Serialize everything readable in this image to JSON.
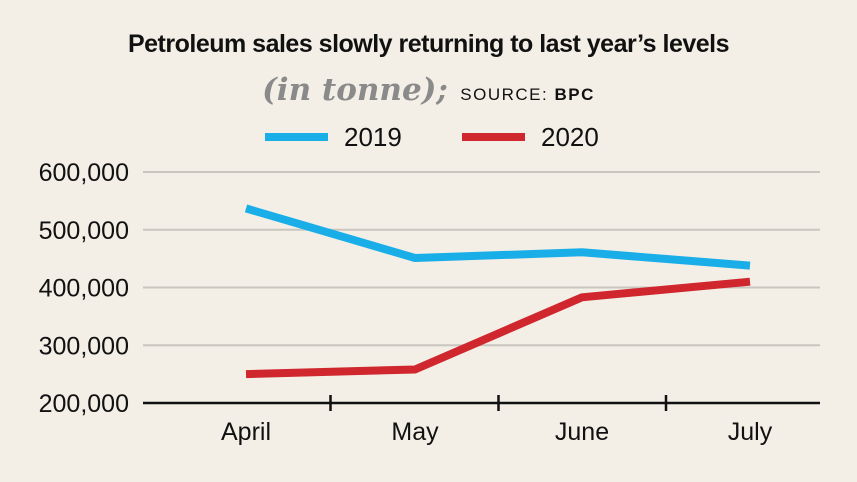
{
  "chart_data": {
    "type": "line",
    "title": "Petroleum sales slowly returning to last year’s levels",
    "unit_label": "(in tonne);",
    "source_prefix": "SOURCE: ",
    "source_name": "BPC",
    "categories": [
      "April",
      "May",
      "June",
      "July"
    ],
    "series": [
      {
        "name": "2019",
        "color": "#1aaee8",
        "values": [
          537000,
          451000,
          461000,
          438000
        ]
      },
      {
        "name": "2020",
        "color": "#d0262d",
        "values": [
          250000,
          258000,
          383000,
          410000
        ]
      }
    ],
    "ylim": [
      200000,
      600000
    ],
    "yticks": [
      600000,
      500000,
      400000,
      300000,
      200000
    ],
    "ytick_labels": [
      "600,000",
      "500,000",
      "400,000",
      "300,000",
      "200,000"
    ],
    "xlabel": "",
    "ylabel": "",
    "grid": true,
    "legend_position": "top-center"
  }
}
